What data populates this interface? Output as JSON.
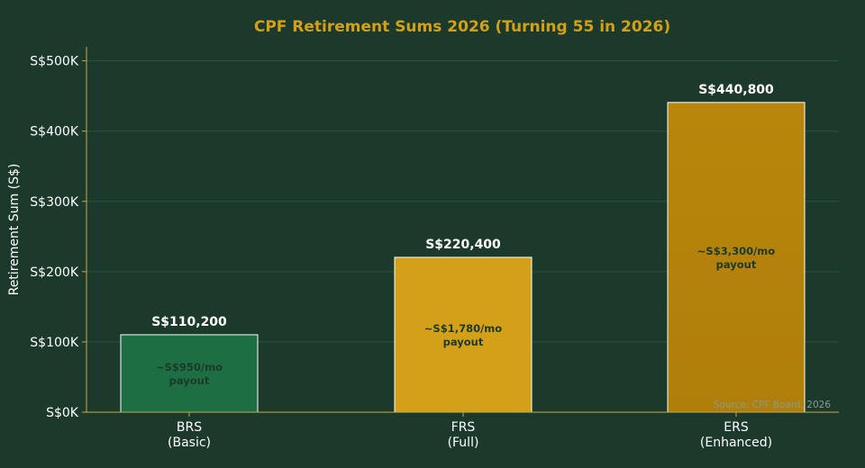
{
  "colors": {
    "background": "#1b3a2b",
    "title": "#d4a017",
    "axis": "#c8a84a",
    "grid": "#2c5040",
    "text": "#ffffff",
    "payout_text": "#1b3a2b",
    "source_text": "#8a9a8c"
  },
  "chart_data": {
    "type": "bar",
    "title": "CPF Retirement Sums 2026 (Turning 55 in 2026)",
    "xlabel": "",
    "ylabel": "Retirement Sum (S$)",
    "ylim": [
      0,
      520000
    ],
    "yticks": [
      0,
      100000,
      200000,
      300000,
      400000,
      500000
    ],
    "ytick_labels": [
      "S$0K",
      "S$100K",
      "S$200K",
      "S$300K",
      "S$400K",
      "S$500K"
    ],
    "grid": true,
    "categories": [
      "BRS\n(Basic)",
      "FRS\n(Full)",
      "ERS\n(Enhanced)"
    ],
    "values": [
      110200,
      220400,
      440800
    ],
    "value_labels": [
      "S$110,200",
      "S$220,400",
      "S$440,800"
    ],
    "annotations": [
      "~S$950/mo\npayout",
      "~S$1,780/mo\npayout",
      "~S$3,300/mo\npayout"
    ],
    "bar_colors": [
      "#1e6e44",
      "#d4a017",
      "#b8860b"
    ],
    "source": "Source: CPF Board, 2026"
  }
}
